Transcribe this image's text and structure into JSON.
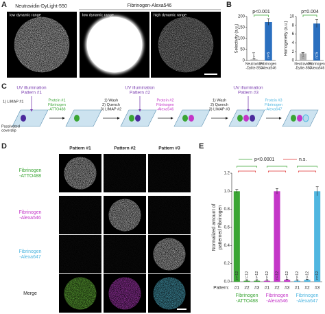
{
  "panel_letters": [
    "A",
    "B",
    "C",
    "D",
    "E"
  ],
  "panel_a": {
    "title_left": "Neutravidin-DyLight-550",
    "title_right": "Fibrinogen-Alexa546",
    "image_labels": [
      "low dynamic range",
      "low dynamic range",
      "high dynamic range"
    ]
  },
  "panel_c": {
    "uv_labels": [
      [
        "UV illumination",
        "Pattern #1"
      ],
      [
        "UV illumination",
        "Pattern #2"
      ],
      [
        "UV illumination",
        "Pattern #3"
      ]
    ],
    "start_labels": [
      [
        "1) LIMAP #1"
      ],
      [
        "Passivated",
        "coverslip"
      ]
    ],
    "steps": [
      {
        "lines": [
          "Protein  #1",
          "Fibrinogen",
          "-ATTO488"
        ],
        "color": "#3aa534"
      },
      {
        "lines": [
          "1) Wash",
          "2) Quench",
          "3) LIMAP #2"
        ],
        "color": "#222222"
      },
      {
        "lines": [
          "Protein  #2",
          "Fibrinogen",
          "-Alexa546"
        ],
        "color": "#c436c8"
      },
      {
        "lines": [
          "1) Wash",
          "2) Quench",
          "3) LIMAP #3"
        ],
        "color": "#222222"
      },
      {
        "lines": [
          "Protein  #3",
          "Fibrinogen",
          "-Alexa647"
        ],
        "color": "#4fb6e0"
      }
    ]
  },
  "panel_d": {
    "columns": [
      "Pattern #1",
      "Pattern #2",
      "Pattern #3"
    ],
    "rows": [
      {
        "lines": [
          "Fibrinogen",
          "-ATTO488"
        ],
        "color": "#3aa534"
      },
      {
        "lines": [
          "Fibrinogen",
          "-Alexa546"
        ],
        "color": "#c436c8"
      },
      {
        "lines": [
          "Fibrinogen",
          "-Alexa647"
        ],
        "color": "#4fb6e0"
      },
      {
        "lines": [
          "Merge"
        ],
        "color": "#222222"
      }
    ]
  },
  "chart_data": [
    {
      "type": "bar",
      "ylabel": "Selectivity (a.u.)",
      "categories": [
        [
          "Neutravidin",
          "-Dylite-550"
        ],
        [
          "Fibrinogen",
          "-Alexa546"
        ]
      ],
      "values": [
        5,
        175
      ],
      "errors": [
        2,
        15
      ],
      "colors": [
        "#b5b5b5",
        "#2a6fbf"
      ],
      "n_labels": [
        "n=4",
        "n=5"
      ],
      "annotation": "p<0.001",
      "ylim": [
        0,
        200
      ],
      "yticks": [
        0,
        50,
        100,
        150,
        200
      ]
    },
    {
      "type": "bar",
      "ylabel": "Homogeneity (a.u.)",
      "categories": [
        [
          "Neutravidin",
          "-Dylite-550"
        ],
        [
          "Fibrinogen",
          "-Alexa546"
        ]
      ],
      "values": [
        1.6,
        8.4
      ],
      "errors": [
        0.2,
        0.9
      ],
      "colors": [
        "#b5b5b5",
        "#2a6fbf"
      ],
      "n_labels": [
        "n=4",
        "n=5"
      ],
      "annotation": "p=0.004",
      "ylim": [
        0,
        10
      ],
      "yticks": [
        0,
        2,
        4,
        6,
        8,
        10
      ]
    },
    {
      "type": "grouped_bar",
      "ylabel": [
        "Normalized amount of",
        "patterned Fibrinogen"
      ],
      "category_label": "Pattern:",
      "categories": [
        "#1",
        "#2",
        "#3"
      ],
      "series": [
        {
          "name": [
            "Fibrinogen",
            "-ATTO488"
          ],
          "color": "#3aa534",
          "values": [
            1.0,
            0.01,
            0.01
          ],
          "errors": [
            0.02,
            0.005,
            0.005
          ],
          "n_labels": [
            "n=12",
            "n=12",
            "n=12"
          ]
        },
        {
          "name": [
            "Fibrinogen",
            "-Alexa546"
          ],
          "color": "#c436c8",
          "values": [
            0.01,
            1.0,
            0.02
          ],
          "errors": [
            0.005,
            0.03,
            0.005
          ],
          "n_labels": [
            "n=12",
            "n=12",
            "n=12"
          ]
        },
        {
          "name": [
            "Fibrinogen",
            "-Alexa647"
          ],
          "color": "#4fb6e0",
          "values": [
            0.01,
            0.02,
            1.0
          ],
          "errors": [
            0.005,
            0.005,
            0.05
          ],
          "n_labels": [
            "n=12",
            "n=12",
            "n=12"
          ]
        }
      ],
      "annotations": [
        "p<0.0001",
        "n.s."
      ],
      "ylim": [
        0,
        1.2
      ],
      "yticks": [
        {
          "value": 0,
          "label": "0.0"
        },
        0.2,
        0.4,
        0.6,
        0.8,
        {
          "value": 1,
          "label": "1.0"
        },
        1.2
      ]
    }
  ]
}
